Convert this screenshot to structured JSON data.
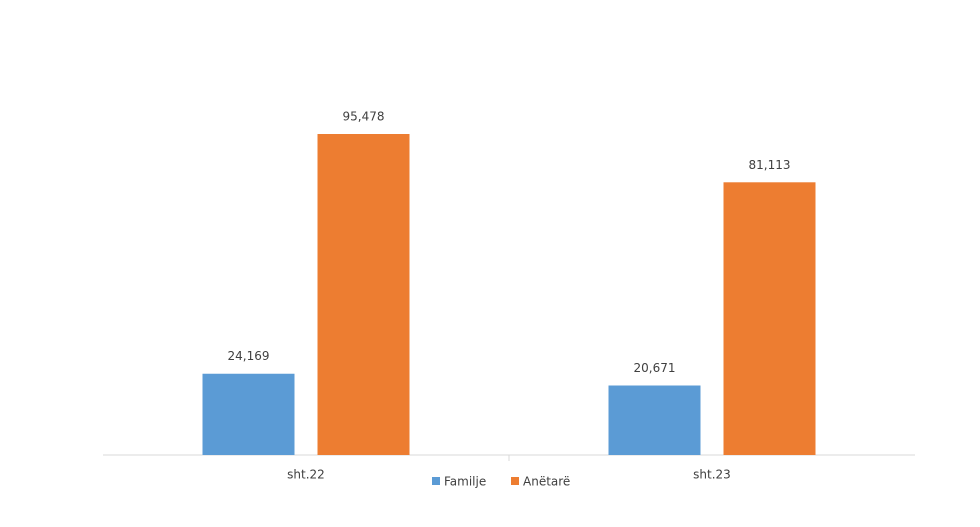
{
  "chart_data": {
    "type": "bar",
    "categories": [
      "sht.22",
      "sht.23"
    ],
    "series": [
      {
        "name": "Familje",
        "color": "#5b9bd5",
        "values": [
          24169,
          20671
        ],
        "value_labels": [
          "24,169",
          "20,671"
        ]
      },
      {
        "name": "Anëtarë",
        "color": "#ed7d31",
        "values": [
          95478,
          81113
        ],
        "value_labels": [
          "95,478",
          "81,113"
        ]
      }
    ],
    "legend": "bottom"
  }
}
